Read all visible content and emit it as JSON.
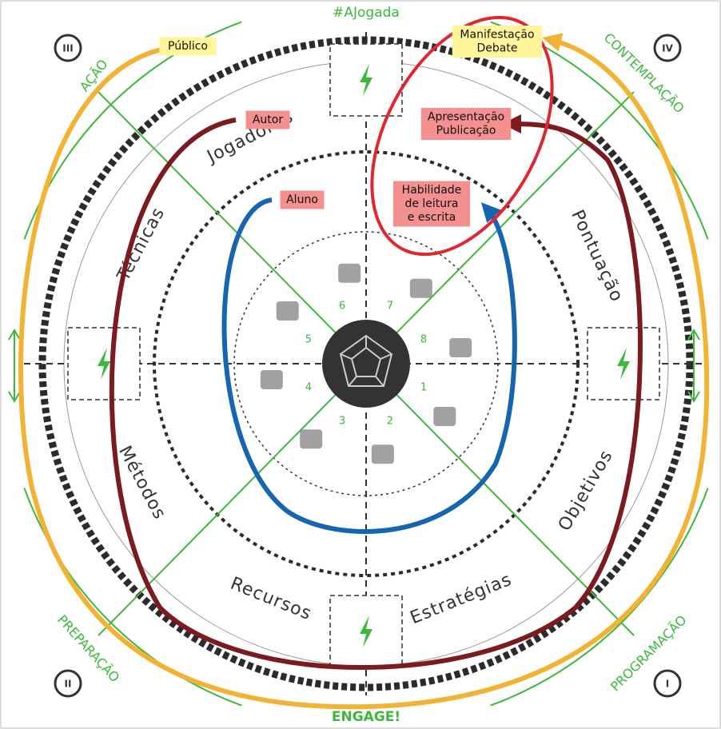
{
  "title": "#AJogada",
  "footer": "ENGAGE!",
  "phases": [
    {
      "numeral": "III",
      "label": "AÇÃO"
    },
    {
      "numeral": "IV",
      "label": "CONTEMPLAÇÃO"
    },
    {
      "numeral": "II",
      "label": "PREPARAÇÃO"
    },
    {
      "numeral": "I",
      "label": "PROGRAMAÇÃO"
    }
  ],
  "loops": [
    {
      "label": [
        "Público"
      ]
    },
    {
      "label": [
        "Manifestação",
        "Debate"
      ]
    },
    {
      "label": [
        "Autor"
      ]
    },
    {
      "label": [
        "Apresentação",
        "Publicação"
      ]
    },
    {
      "label": [
        "Aluno"
      ]
    },
    {
      "label": [
        "Habilidade",
        "de leitura",
        "e escrita"
      ]
    }
  ],
  "ring_words": [
    "Jogadores",
    "ado",
    "Pontuação",
    "Objetivos",
    "Estratégias",
    "Recursos",
    "Métodos",
    "Técnicas"
  ],
  "stages": [
    1,
    2,
    3,
    4,
    5,
    6,
    7,
    8
  ]
}
